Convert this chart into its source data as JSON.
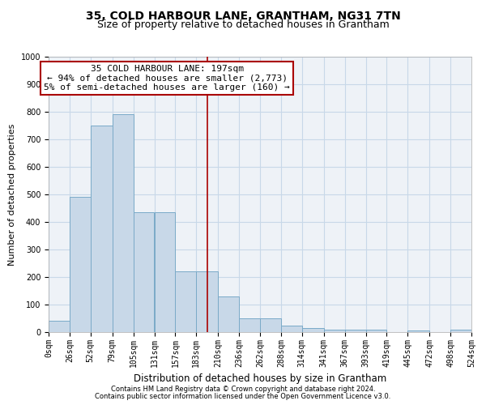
{
  "title1": "35, COLD HARBOUR LANE, GRANTHAM, NG31 7TN",
  "title2": "Size of property relative to detached houses in Grantham",
  "xlabel": "Distribution of detached houses by size in Grantham",
  "ylabel": "Number of detached properties",
  "footnote1": "Contains HM Land Registry data © Crown copyright and database right 2024.",
  "footnote2": "Contains public sector information licensed under the Open Government Licence v3.0.",
  "bar_edges": [
    0,
    26,
    52,
    79,
    105,
    131,
    157,
    183,
    210,
    236,
    262,
    288,
    314,
    341,
    367,
    393,
    419,
    445,
    472,
    498,
    524
  ],
  "bar_heights": [
    40,
    490,
    750,
    790,
    435,
    435,
    220,
    220,
    130,
    50,
    50,
    25,
    15,
    10,
    10,
    10,
    0,
    5,
    0,
    10
  ],
  "bar_color": "#c8d8e8",
  "bar_edgecolor": "#7aaac8",
  "grid_color": "#c8d8e8",
  "vline_x": 197,
  "vline_color": "#aa0000",
  "annotation_line1": "35 COLD HARBOUR LANE: 197sqm",
  "annotation_line2": "← 94% of detached houses are smaller (2,773)",
  "annotation_line3": "5% of semi-detached houses are larger (160) →",
  "annotation_box_color": "#aa0000",
  "ylim": [
    0,
    1000
  ],
  "background_color": "#eef2f7",
  "title1_fontsize": 10,
  "title2_fontsize": 9,
  "xlabel_fontsize": 8.5,
  "ylabel_fontsize": 8,
  "tick_fontsize": 7,
  "annotation_fontsize": 8,
  "footnote_fontsize": 6
}
